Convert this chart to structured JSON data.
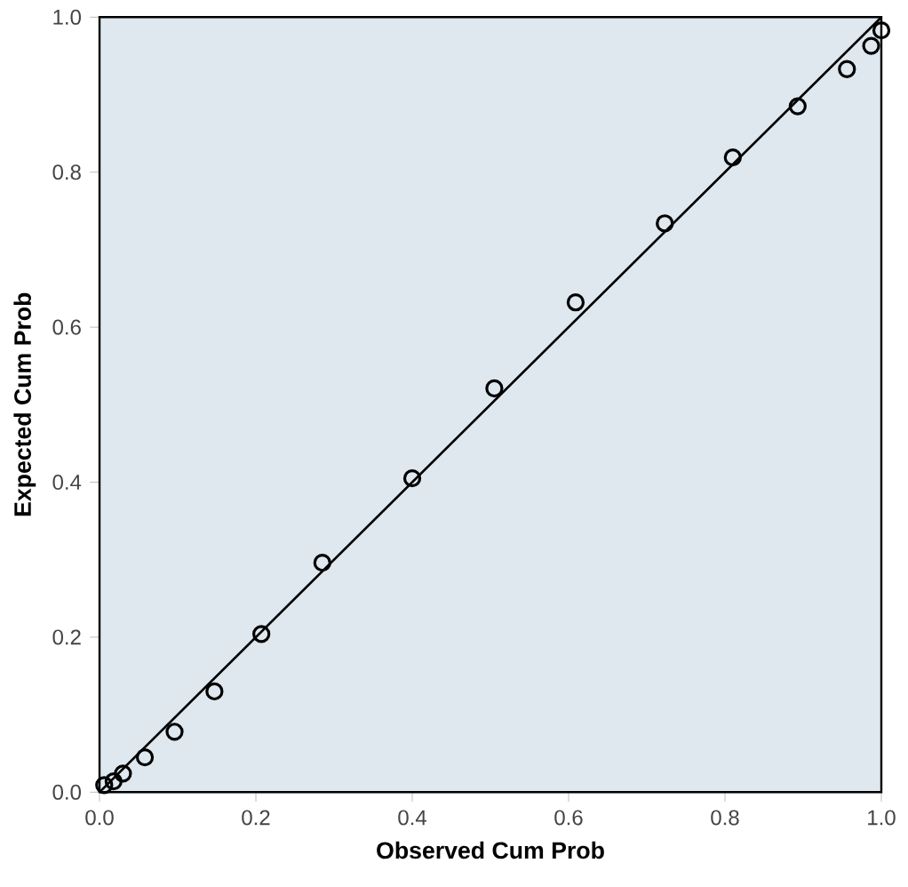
{
  "chart_data": {
    "type": "scatter",
    "xlabel": "Observed Cum Prob",
    "ylabel": "Expected Cum Prob",
    "xlim": [
      0,
      1
    ],
    "ylim": [
      0,
      1
    ],
    "xticks": [
      {
        "value": 0,
        "label": "0.0"
      },
      0.2,
      0.4,
      0.6,
      0.8,
      {
        "value": 1,
        "label": "1.0"
      }
    ],
    "yticks": [
      {
        "value": 0,
        "label": "0.0"
      },
      0.2,
      0.4,
      0.6,
      0.8,
      {
        "value": 1,
        "label": "1.0"
      }
    ],
    "grid": false,
    "series": [
      {
        "color": "#000000",
        "marker": "circle",
        "x": [
          0.006,
          0.018,
          0.03,
          0.058,
          0.096,
          0.147,
          0.207,
          0.285,
          0.4,
          0.505,
          0.609,
          0.723,
          0.81,
          0.893,
          0.956,
          0.987,
          1.0
        ],
        "values": [
          0.009,
          0.014,
          0.024,
          0.045,
          0.078,
          0.13,
          0.204,
          0.296,
          0.405,
          0.521,
          0.632,
          0.734,
          0.819,
          0.885,
          0.933,
          0.963,
          0.983
        ]
      },
      {
        "type": "line",
        "color": "#000000",
        "marker": "none",
        "line_style": "solid",
        "x": [
          0,
          1
        ],
        "values": [
          0,
          1
        ]
      }
    ]
  }
}
